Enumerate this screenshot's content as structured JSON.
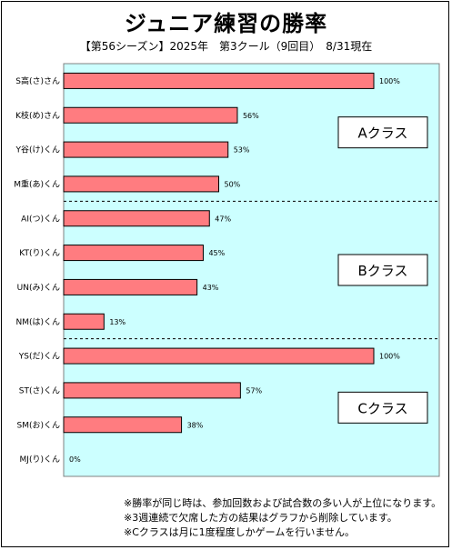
{
  "chart_data": {
    "type": "bar",
    "orientation": "horizontal",
    "title": "ジュニア練習の勝率",
    "subtitle": "【第56シーズン】2025年　第3クール（9回目）　8/31現在",
    "categories": [
      "S高(さ)さん",
      "K枝(め)さん",
      "Y谷(け)くん",
      "M重(あ)くん",
      "AI(つ)くん",
      "KT(り)くん",
      "UN(み)くん",
      "NM(は)くん",
      "YS(だ)くん",
      "ST(さ)くん",
      "SM(お)くん",
      "MJ(り)くん"
    ],
    "values": [
      100,
      56,
      53,
      50,
      47,
      45,
      43,
      13,
      100,
      57,
      38,
      0
    ],
    "value_labels": [
      "100%",
      "56%",
      "53%",
      "50%",
      "47%",
      "45%",
      "43%",
      "13%",
      "100%",
      "57%",
      "38%",
      "0%"
    ],
    "xlim": [
      0,
      100
    ],
    "groups": [
      {
        "label": "Aクラス",
        "start": 0,
        "count": 4
      },
      {
        "label": "Bクラス",
        "start": 4,
        "count": 4
      },
      {
        "label": "Cクラス",
        "start": 8,
        "count": 4
      }
    ],
    "grid": false,
    "colors": {
      "bar": "#FF7C80",
      "plot_bg": "#CCFFFF",
      "bar_stroke": "#000000"
    }
  },
  "notes": [
    "※勝率が同じ時は、参加回数および試合数の多い人が上位になります。",
    "※3週連続で欠席した方の結果はグラフから削除しています。",
    "※Cクラスは月に1度程度しかゲームを行いません。"
  ]
}
